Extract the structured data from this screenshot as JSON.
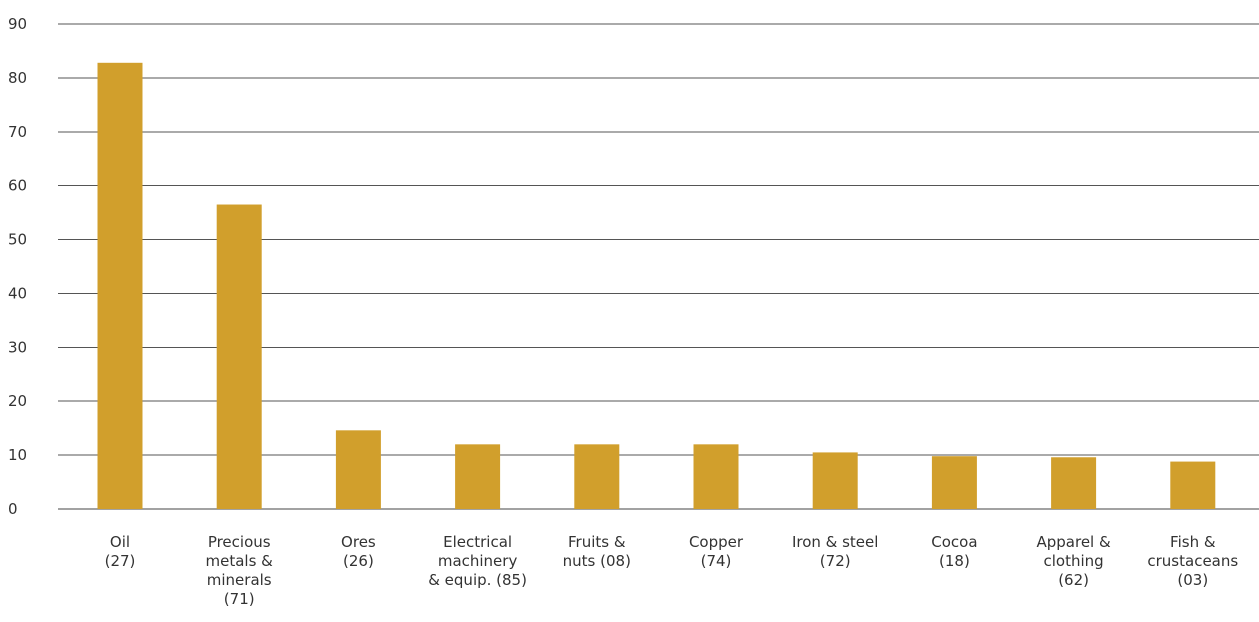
{
  "chart_data": {
    "type": "bar",
    "title": "",
    "xlabel": "",
    "ylabel": "",
    "ylim": [
      0,
      90
    ],
    "yticks": [
      0,
      10,
      20,
      30,
      40,
      50,
      60,
      70,
      80,
      90
    ],
    "grid": true,
    "bar_color": "#D19F2C",
    "categories": [
      [
        "Oil",
        "(27)"
      ],
      [
        "Precious",
        "metals &",
        "minerals",
        "(71)"
      ],
      [
        "Ores",
        "(26)"
      ],
      [
        "Electrical",
        "machinery",
        "& equip. (85)"
      ],
      [
        "Fruits &",
        "nuts (08)"
      ],
      [
        "Copper",
        "(74)"
      ],
      [
        "Iron & steel",
        "(72)"
      ],
      [
        "Cocoa",
        "(18)"
      ],
      [
        "Apparel &",
        "clothing",
        "(62)"
      ],
      [
        "Fish &",
        "crustaceans",
        "(03)"
      ]
    ],
    "values": [
      82.8,
      56.5,
      14.6,
      12.0,
      12.0,
      12.0,
      10.5,
      9.8,
      9.6,
      8.8
    ]
  }
}
